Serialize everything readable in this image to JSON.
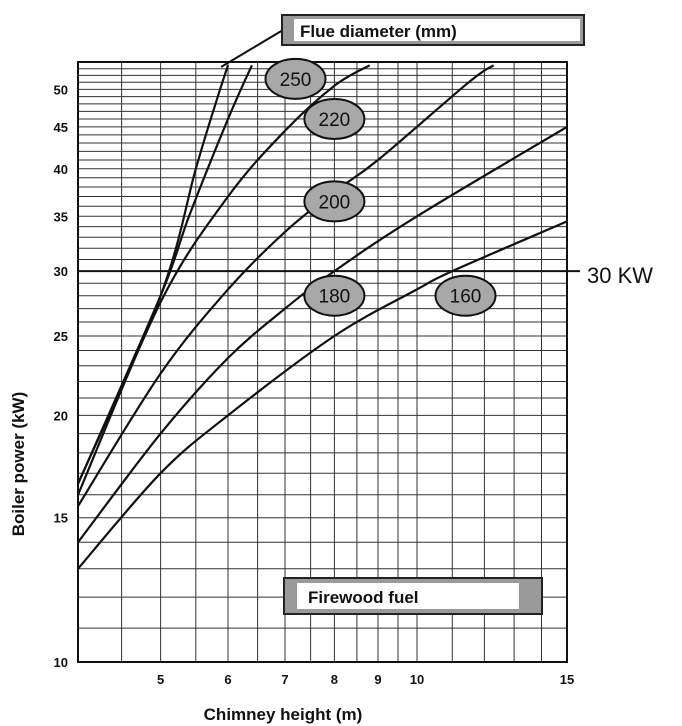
{
  "chart_data": {
    "type": "line",
    "title": "",
    "xlabel": "Chimney height (m)",
    "ylabel": "Boiler power (kW)",
    "xscale": "log",
    "yscale": "log",
    "xlim": [
      4,
      15
    ],
    "ylim": [
      10,
      54
    ],
    "x_ticks": [
      5,
      6,
      7,
      8,
      9,
      10,
      15
    ],
    "x_tick_labels": [
      "5",
      "6",
      "7",
      "8",
      "9",
      "10",
      "15"
    ],
    "y_ticks": [
      10,
      15,
      20,
      25,
      30,
      35,
      40,
      45,
      50
    ],
    "y_tick_labels": [
      "10",
      "15",
      "20",
      "25",
      "30",
      "35",
      "40",
      "45",
      "50"
    ],
    "grid": true,
    "legend_box": "Flue diameter (mm)",
    "fuel_box": "Firewood fuel",
    "reference_line": {
      "y": 30,
      "label": "30 KW"
    },
    "series": [
      {
        "name": "160",
        "points": [
          [
            4.0,
            13.0
          ],
          [
            5.0,
            17.0
          ],
          [
            6.0,
            20.0
          ],
          [
            8.0,
            25.0
          ],
          [
            10.0,
            28.5
          ],
          [
            11.0,
            30.0
          ],
          [
            15.0,
            34.5
          ]
        ]
      },
      {
        "name": "180",
        "points": [
          [
            4.0,
            14.0
          ],
          [
            5.0,
            19.0
          ],
          [
            6.0,
            23.5
          ],
          [
            7.0,
            27.0
          ],
          [
            8.0,
            30.0
          ],
          [
            10.0,
            35.0
          ],
          [
            15.0,
            45.0
          ]
        ]
      },
      {
        "name": "200",
        "points": [
          [
            4.0,
            15.5
          ],
          [
            5.0,
            22.5
          ],
          [
            6.0,
            28.5
          ],
          [
            7.0,
            33.5
          ],
          [
            8.0,
            37.5
          ],
          [
            9.0,
            41.0
          ],
          [
            11.5,
            51.0
          ],
          [
            12.3,
            53.5
          ]
        ]
      },
      {
        "name": "220",
        "points": [
          [
            4.0,
            16.0
          ],
          [
            5.0,
            27.5
          ],
          [
            6.0,
            37.0
          ],
          [
            7.0,
            44.5
          ],
          [
            8.0,
            50.5
          ],
          [
            8.8,
            53.5
          ]
        ]
      },
      {
        "name": "250",
        "points": [
          [
            4.0,
            16.5
          ],
          [
            5.0,
            28.0
          ],
          [
            5.4,
            35.0
          ],
          [
            6.0,
            46.0
          ],
          [
            6.4,
            53.5
          ]
        ]
      },
      {
        "name": "",
        "points": [
          [
            4.0,
            16.5
          ],
          [
            5.0,
            28.0
          ],
          [
            5.5,
            40.0
          ],
          [
            5.8,
            48.0
          ],
          [
            6.0,
            53.5
          ]
        ]
      }
    ],
    "bubbles": [
      {
        "label": "250",
        "x": 7.2,
        "y": 51.5
      },
      {
        "label": "220",
        "x": 8.0,
        "y": 46.0
      },
      {
        "label": "200",
        "x": 8.0,
        "y": 36.5
      },
      {
        "label": "180",
        "x": 8.0,
        "y": 28.0
      },
      {
        "label": "160",
        "x": 11.4,
        "y": 28.0
      }
    ]
  }
}
